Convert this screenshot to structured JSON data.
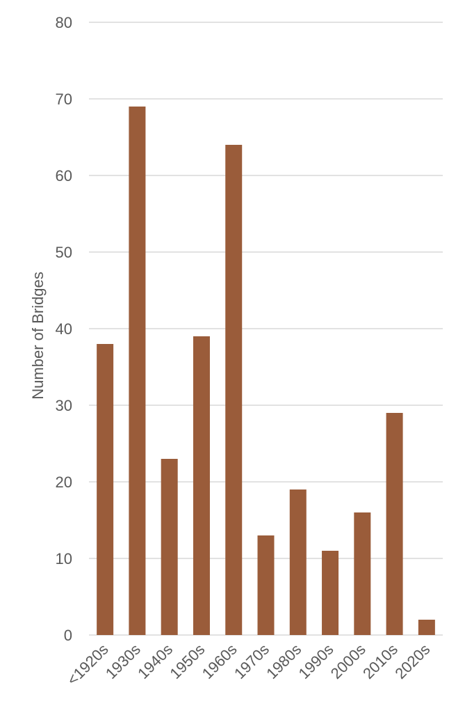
{
  "chart_data": {
    "type": "bar",
    "title": "",
    "xlabel": "",
    "ylabel": "Number of Bridges",
    "categories": [
      "<1920s",
      "1930s",
      "1940s",
      "1950s",
      "1960s",
      "1970s",
      "1980s",
      "1990s",
      "2000s",
      "2010s",
      "2020s"
    ],
    "values": [
      38,
      69,
      23,
      39,
      64,
      13,
      19,
      11,
      16,
      29,
      2
    ],
    "ylim": [
      0,
      80
    ],
    "yticks": [
      0,
      10,
      20,
      30,
      40,
      50,
      60,
      70,
      80
    ],
    "grid": true,
    "legend": "none",
    "bar_color": "#9a5c3a",
    "x_tick_rotation": "diagonal"
  }
}
